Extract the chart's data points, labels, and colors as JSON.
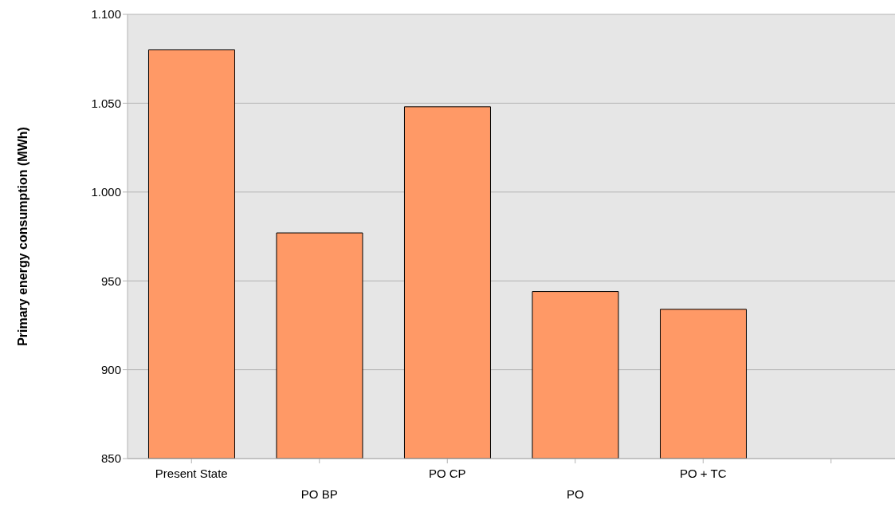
{
  "chart_data": {
    "type": "bar",
    "ylabel": "Primary energy consumption (MWh)",
    "categories": [
      "Present State",
      "PO BP",
      "PO CP",
      "PO",
      "PO + TC",
      null
    ],
    "values": [
      1080,
      977,
      1048,
      944,
      934,
      null
    ],
    "color": "#ff9966",
    "ylim": [
      850,
      1100
    ],
    "yticks": [
      850,
      900,
      950,
      {
        "value": 1000,
        "label": "1.000"
      },
      {
        "value": 1050,
        "label": "1.050"
      },
      {
        "value": 1100,
        "label": "1.100"
      }
    ],
    "grid": "y"
  }
}
